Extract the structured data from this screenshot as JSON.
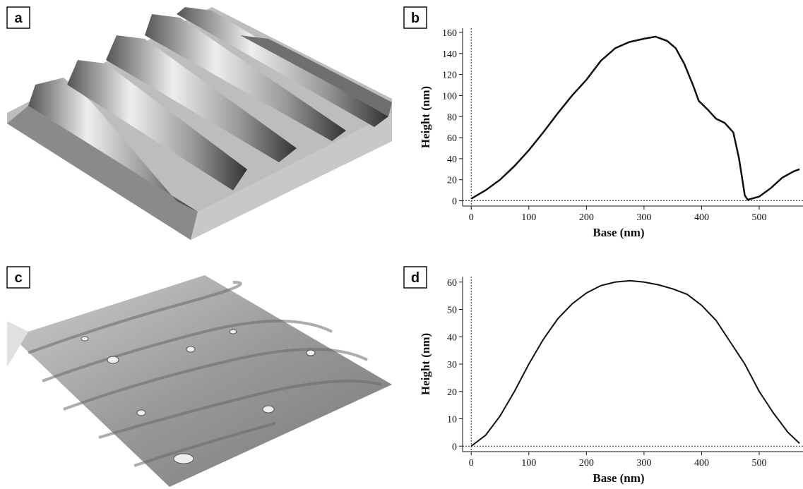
{
  "panel_labels": [
    "a",
    "b",
    "c",
    "d"
  ],
  "chart_data": [
    {
      "type": "line",
      "x_label": "Base (nm)",
      "y_label": "Height (nm)",
      "xlim": [
        -15,
        576
      ],
      "ylim": [
        -5,
        164
      ],
      "xticks": [
        0,
        100,
        200,
        300,
        400,
        500
      ],
      "yticks": [
        0,
        20,
        40,
        60,
        80,
        100,
        120,
        140,
        160
      ],
      "series": [
        {
          "color": "#111111",
          "x": [
            0,
            25,
            50,
            75,
            100,
            125,
            150,
            175,
            200,
            225,
            250,
            275,
            300,
            320,
            340,
            355,
            370,
            385,
            395,
            410,
            425,
            440,
            455,
            465,
            475,
            480,
            500,
            520,
            540,
            560,
            570
          ],
          "values": [
            2,
            10,
            20,
            33,
            48,
            65,
            83,
            100,
            115,
            133,
            145,
            151,
            154,
            156,
            152,
            145,
            130,
            110,
            95,
            87,
            78,
            74,
            65,
            40,
            5,
            1,
            4,
            12,
            22,
            28,
            30
          ]
        }
      ]
    },
    {
      "type": "line",
      "x_label": "Base (nm)",
      "y_label": "Height (nm)",
      "xlim": [
        -15,
        576
      ],
      "ylim": [
        -2,
        62
      ],
      "xticks": [
        0,
        100,
        200,
        300,
        400,
        500
      ],
      "yticks": [
        0,
        10,
        20,
        30,
        40,
        50,
        60
      ],
      "series": [
        {
          "color": "#111111",
          "x": [
            0,
            25,
            50,
            75,
            100,
            125,
            150,
            175,
            200,
            225,
            250,
            275,
            300,
            325,
            350,
            375,
            400,
            425,
            450,
            475,
            500,
            525,
            550,
            570
          ],
          "values": [
            0,
            4,
            11,
            20,
            30,
            39,
            46.5,
            52,
            56,
            58.7,
            60,
            60.5,
            60,
            59,
            57.5,
            55.5,
            51.5,
            46,
            38,
            30,
            20,
            12,
            5,
            1
          ]
        }
      ]
    }
  ]
}
